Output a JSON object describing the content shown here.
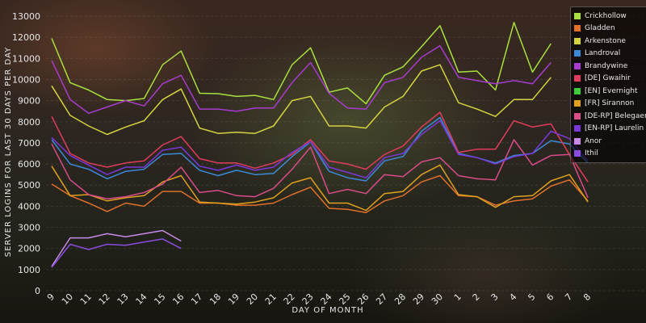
{
  "chart_data": {
    "type": "line",
    "ylabel": "SERVER LOGINS FOR LAST 30 DAYS PER DAY",
    "xlabel": "DAY OF MONTH",
    "ylim": [
      0,
      13000
    ],
    "yticks": [
      0,
      1000,
      2000,
      3000,
      4000,
      5000,
      6000,
      7000,
      8000,
      9000,
      10000,
      11000,
      12000,
      13000
    ],
    "categories": [
      "9",
      "10",
      "11",
      "12",
      "13",
      "14",
      "15",
      "16",
      "17",
      "18",
      "19",
      "20",
      "21",
      "22",
      "23",
      "24",
      "25",
      "26",
      "27",
      "28",
      "29",
      "30",
      "1",
      "2",
      "3",
      "4",
      "5",
      "6",
      "7",
      "8"
    ],
    "grid": true,
    "legend_position": "top-right",
    "series": [
      {
        "name": "Crickhollow",
        "color": "#a8e040",
        "values": [
          11950,
          9850,
          9500,
          9050,
          9000,
          9100,
          10700,
          11350,
          9350,
          9330,
          9200,
          9250,
          9050,
          10700,
          11500,
          9400,
          9600,
          8850,
          10200,
          10600,
          11550,
          12550,
          10350,
          10400,
          9500,
          12700,
          10350,
          11700,
          null,
          null
        ]
      },
      {
        "name": "Gladden",
        "color": "#e0702c",
        "values": [
          5050,
          4500,
          4150,
          3750,
          4150,
          4000,
          4700,
          4700,
          4150,
          4150,
          4050,
          4050,
          4150,
          4550,
          4900,
          3900,
          3850,
          3700,
          4250,
          4500,
          5150,
          5450,
          4500,
          4450,
          4050,
          4250,
          4350,
          4950,
          5250,
          4250
        ]
      },
      {
        "name": "Arkenstone",
        "color": "#d4d440",
        "values": [
          9700,
          8300,
          7800,
          7400,
          7750,
          8050,
          9050,
          9550,
          7700,
          7450,
          7500,
          7450,
          7800,
          9000,
          9200,
          7800,
          7800,
          7700,
          8700,
          9200,
          10400,
          10700,
          8900,
          8600,
          8250,
          9050,
          9050,
          10100,
          null,
          null
        ]
      },
      {
        "name": "Landroval",
        "color": "#3a8ad8",
        "values": [
          7150,
          6000,
          5750,
          5300,
          5650,
          5750,
          6450,
          6500,
          5700,
          5450,
          5700,
          5500,
          5550,
          6350,
          7050,
          5650,
          5350,
          5200,
          6150,
          6350,
          7550,
          8200,
          6500,
          6300,
          6050,
          6400,
          6500,
          7100,
          6950,
          6050
        ]
      },
      {
        "name": "Brandywine",
        "color": "#a83cd0",
        "values": [
          10900,
          9050,
          8400,
          8700,
          9000,
          8750,
          9800,
          10200,
          8600,
          8600,
          8500,
          8650,
          8650,
          9850,
          10800,
          9350,
          8650,
          8600,
          9850,
          10100,
          11050,
          11600,
          10100,
          9950,
          9800,
          9950,
          9800,
          10800,
          null,
          null
        ]
      },
      {
        "name": "[DE] Gwaihir",
        "color": "#e03c5c",
        "values": [
          8250,
          6500,
          6050,
          5850,
          6050,
          6150,
          6900,
          7300,
          6250,
          6050,
          6050,
          5800,
          6050,
          6450,
          7150,
          6150,
          6000,
          5750,
          6450,
          6850,
          7750,
          8450,
          6550,
          6700,
          6700,
          8050,
          7750,
          7900,
          6450,
          5150
        ]
      },
      {
        "name": "[EN] Evernight",
        "color": "#3ccc3c",
        "values": [
          null,
          null,
          null,
          null,
          null,
          null,
          null,
          null,
          null,
          null,
          null,
          null,
          null,
          null,
          null,
          null,
          null,
          null,
          null,
          null,
          null,
          null,
          null,
          null,
          null,
          null,
          null,
          null,
          null,
          null
        ]
      },
      {
        "name": "[FR] Sirannon",
        "color": "#e0a020",
        "values": [
          5900,
          4500,
          4550,
          4250,
          4400,
          4500,
          5150,
          5450,
          4200,
          4150,
          4100,
          4200,
          4400,
          5100,
          5350,
          4150,
          4150,
          3800,
          4600,
          4700,
          5500,
          5950,
          4550,
          4450,
          3950,
          4450,
          4500,
          5200,
          5500,
          4200
        ]
      },
      {
        "name": "[DE-RP] Belegaer",
        "color": "#d84c88",
        "values": [
          6950,
          5250,
          4550,
          4350,
          4450,
          4650,
          5050,
          5850,
          4650,
          4750,
          4500,
          4450,
          4850,
          5750,
          6800,
          4600,
          4800,
          4600,
          5500,
          5400,
          6100,
          6300,
          5450,
          5300,
          5250,
          7150,
          5950,
          6400,
          6450,
          4400
        ]
      },
      {
        "name": "[EN-RP] Laurelin",
        "color": "#7a38d8",
        "values": [
          7250,
          6400,
          5950,
          5500,
          5850,
          5850,
          6650,
          6800,
          5900,
          5700,
          5950,
          5700,
          5850,
          6550,
          7050,
          5850,
          5600,
          5350,
          6300,
          6500,
          7400,
          8050,
          6450,
          6300,
          6000,
          6350,
          6500,
          7550,
          7200,
          6150
        ]
      },
      {
        "name": "Anor",
        "color": "#c88ae8",
        "values": [
          1150,
          2500,
          2500,
          2700,
          2550,
          2700,
          2850,
          2350,
          null,
          null,
          null,
          null,
          null,
          null,
          null,
          null,
          null,
          null,
          null,
          null,
          null,
          null,
          null,
          null,
          null,
          null,
          null,
          null,
          null,
          null
        ]
      },
      {
        "name": "Ithil",
        "color": "#8a4ce0",
        "values": [
          1100,
          2200,
          1950,
          2200,
          2150,
          2300,
          2450,
          2000,
          null,
          null,
          null,
          null,
          null,
          null,
          null,
          null,
          null,
          null,
          null,
          null,
          null,
          null,
          null,
          null,
          null,
          null,
          null,
          null,
          null,
          null
        ]
      }
    ]
  }
}
